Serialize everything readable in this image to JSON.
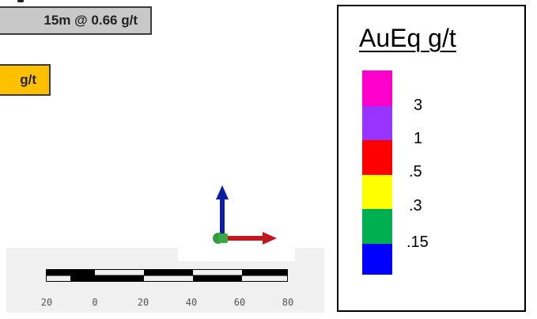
{
  "intercept_label": "15m @ 0.66 g/t",
  "gold_label": "g/t",
  "scale_bar": {
    "tick_labels": [
      "20",
      "0",
      "20",
      "40",
      "60",
      "80"
    ]
  },
  "legend": {
    "title": "AuEq g/t",
    "swatch_colors": [
      "#ff00cc",
      "#9933ff",
      "#ff0000",
      "#ffff00",
      "#00b050",
      "#0000ff"
    ],
    "labels": [
      "3",
      "1",
      ".5",
      ".3",
      ".15"
    ]
  },
  "axes_colors": {
    "vertical": "#0d1f9e",
    "horizontal": "#c0181e",
    "origin": "#2e9e3a"
  }
}
